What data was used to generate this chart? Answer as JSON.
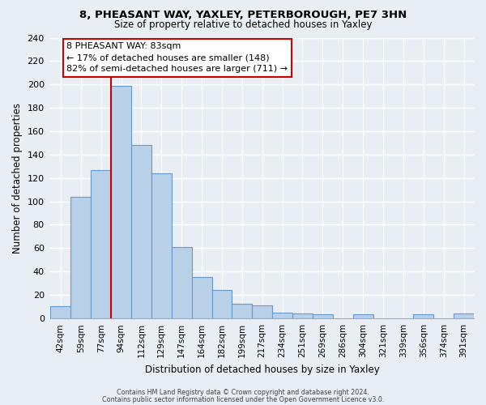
{
  "title": "8, PHEASANT WAY, YAXLEY, PETERBOROUGH, PE7 3HN",
  "subtitle": "Size of property relative to detached houses in Yaxley",
  "xlabel": "Distribution of detached houses by size in Yaxley",
  "ylabel": "Number of detached properties",
  "bar_labels": [
    "42sqm",
    "59sqm",
    "77sqm",
    "94sqm",
    "112sqm",
    "129sqm",
    "147sqm",
    "164sqm",
    "182sqm",
    "199sqm",
    "217sqm",
    "234sqm",
    "251sqm",
    "269sqm",
    "286sqm",
    "304sqm",
    "321sqm",
    "339sqm",
    "356sqm",
    "374sqm",
    "391sqm"
  ],
  "bar_values": [
    10,
    104,
    127,
    199,
    148,
    124,
    61,
    35,
    24,
    12,
    11,
    5,
    4,
    3,
    0,
    3,
    0,
    0,
    3,
    0,
    4
  ],
  "bar_color": "#b8d0e8",
  "bar_edgecolor": "#6699cc",
  "ylim": [
    0,
    240
  ],
  "yticks": [
    0,
    20,
    40,
    60,
    80,
    100,
    120,
    140,
    160,
    180,
    200,
    220,
    240
  ],
  "vline_x": 2.5,
  "vline_color": "#cc0000",
  "annotation_title": "8 PHEASANT WAY: 83sqm",
  "annotation_line1": "← 17% of detached houses are smaller (148)",
  "annotation_line2": "82% of semi-detached houses are larger (711) →",
  "annotation_box_color": "#ffffff",
  "annotation_box_edgecolor": "#cc0000",
  "footer_line1": "Contains HM Land Registry data © Crown copyright and database right 2024.",
  "footer_line2": "Contains public sector information licensed under the Open Government Licence v3.0.",
  "background_color": "#e8eef4",
  "plot_background": "#e8eef4",
  "grid_color": "#ffffff",
  "spine_color": "#aaaaaa"
}
